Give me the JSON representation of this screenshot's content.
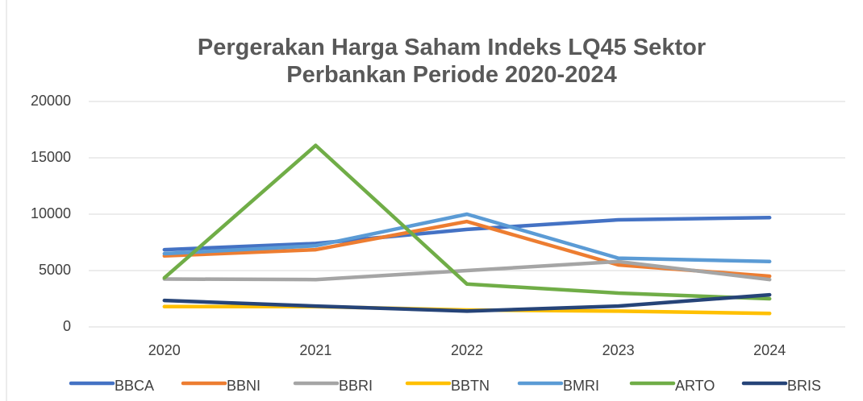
{
  "chart_data": {
    "type": "line",
    "title": "Pergerakan Harga Saham Indeks LQ45 Sektor Perbankan Periode 2020-2024",
    "categories": [
      "2020",
      "2021",
      "2022",
      "2023",
      "2024"
    ],
    "series": [
      {
        "name": "BBCA",
        "color": "#4472c4",
        "values": [
          6850,
          7400,
          8650,
          9500,
          9700
        ]
      },
      {
        "name": "BBNI",
        "color": "#ed7d31",
        "values": [
          6300,
          6850,
          9350,
          5500,
          4500
        ]
      },
      {
        "name": "BBRI",
        "color": "#a5a5a5",
        "values": [
          4250,
          4200,
          5000,
          5800,
          4200
        ]
      },
      {
        "name": "BBTN",
        "color": "#ffc000",
        "values": [
          1800,
          1800,
          1500,
          1400,
          1200
        ]
      },
      {
        "name": "BMRI",
        "color": "#5b9bd5",
        "values": [
          6500,
          7200,
          10000,
          6100,
          5800
        ]
      },
      {
        "name": "ARTO",
        "color": "#70ad47",
        "values": [
          4350,
          16100,
          3800,
          3000,
          2500
        ]
      },
      {
        "name": "BRIS",
        "color": "#264478",
        "values": [
          2350,
          1850,
          1400,
          1850,
          2850
        ]
      }
    ],
    "ylim": [
      0,
      20000
    ],
    "yticks": [
      0,
      5000,
      10000,
      15000,
      20000
    ],
    "grid": true,
    "legend": "bottom"
  }
}
